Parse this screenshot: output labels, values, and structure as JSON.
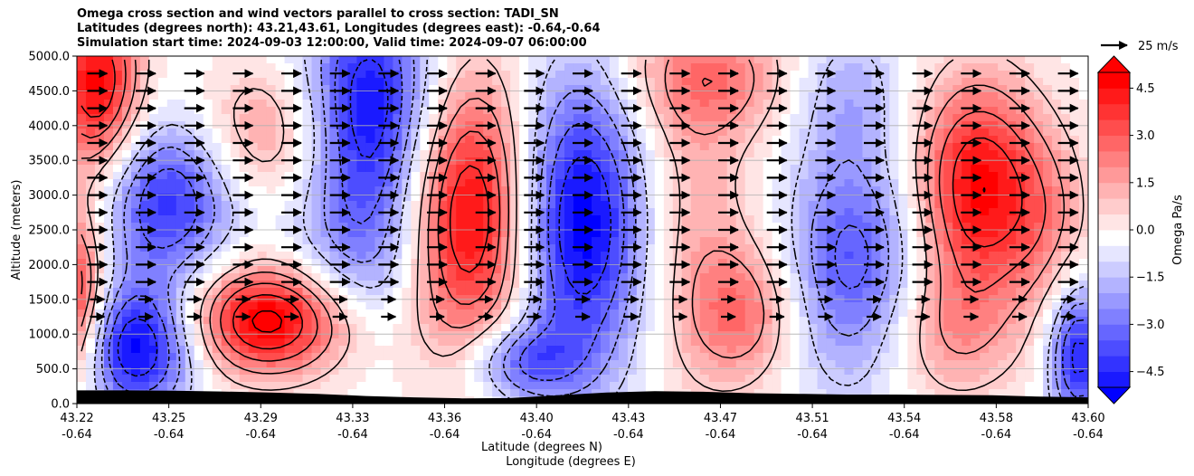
{
  "title_lines": [
    "Omega cross section and wind vectors parallel to cross section: TADI_SN",
    "Latitudes (degrees north): 43.21,43.61, Longitudes (degrees east): -0.64,-0.64",
    "Simulation start time: 2024-09-03 12:00:00, Valid time: 2024-09-07 06:00:00"
  ],
  "chart_data": {
    "type": "heatmap",
    "title": "Omega cross section and wind vectors parallel to cross section: TADI_SN",
    "ylabel": "Altitude (meters)",
    "xlabel_line1": "Latitude (degrees N)",
    "xlabel_line2": "Longitude (degrees E)",
    "ylim": [
      0,
      5000
    ],
    "y_ticks": [
      "0.0",
      "500.0",
      "1000.0",
      "1500.0",
      "2000.0",
      "2500.0",
      "3000.0",
      "3500.0",
      "4000.0",
      "4500.0",
      "5000.0"
    ],
    "y_tick_values": [
      0,
      500,
      1000,
      1500,
      2000,
      2500,
      3000,
      3500,
      4000,
      4500,
      5000
    ],
    "x_ticks_lat": [
      "43.22",
      "43.25",
      "43.29",
      "43.33",
      "43.36",
      "43.40",
      "43.43",
      "43.47",
      "43.51",
      "43.54",
      "43.58",
      "43.60"
    ],
    "x_ticks_lon": [
      "-0.64",
      "-0.64",
      "-0.64",
      "-0.64",
      "-0.64",
      "-0.64",
      "-0.64",
      "-0.64",
      "-0.64",
      "-0.64",
      "-0.64",
      "-0.64"
    ],
    "grid": "horizontal",
    "colorbar": {
      "label": "Omega Pa/s",
      "range": [
        -5,
        5
      ],
      "ticks": [
        "4.5",
        "3.0",
        "1.5",
        "0.0",
        "−1.5",
        "−3.0",
        "−4.5"
      ],
      "tick_values": [
        4.5,
        3.0,
        1.5,
        0.0,
        -1.5,
        -3.0,
        -4.5
      ],
      "colormap": "bwr",
      "extend": "both"
    },
    "vector_key": "25 m/s",
    "omega_field": {
      "comment_units": "x in fraction of section (0=43.22, 1=43.60), altitude in meters, omega in Pa/s",
      "cells": [
        {
          "x": 0.02,
          "alt": 4600,
          "omega": 5.0,
          "wx": 0.03,
          "walt": 900
        },
        {
          "x": 0.0,
          "alt": 1500,
          "omega": 4.2,
          "wx": 0.02,
          "walt": 900
        },
        {
          "x": 0.09,
          "alt": 2900,
          "omega": -4.0,
          "wx": 0.045,
          "walt": 800
        },
        {
          "x": 0.06,
          "alt": 800,
          "omega": -5.0,
          "wx": 0.04,
          "walt": 650
        },
        {
          "x": 0.19,
          "alt": 1200,
          "omega": 5.5,
          "wx": 0.055,
          "walt": 550
        },
        {
          "x": 0.19,
          "alt": 3900,
          "omega": 2.0,
          "wx": 0.05,
          "walt": 700
        },
        {
          "x": 0.29,
          "alt": 4200,
          "omega": -5.0,
          "wx": 0.045,
          "walt": 1300
        },
        {
          "x": 0.28,
          "alt": 2000,
          "omega": -1.5,
          "wx": 0.05,
          "walt": 800
        },
        {
          "x": 0.39,
          "alt": 2700,
          "omega": 5.5,
          "wx": 0.045,
          "walt": 1400
        },
        {
          "x": 0.5,
          "alt": 2600,
          "omega": -5.5,
          "wx": 0.05,
          "walt": 1500
        },
        {
          "x": 0.44,
          "alt": 600,
          "omega": -3.0,
          "wx": 0.04,
          "walt": 400
        },
        {
          "x": 0.6,
          "alt": 2800,
          "omega": 1.8,
          "wx": 0.05,
          "walt": 1800
        },
        {
          "x": 0.66,
          "alt": 1300,
          "omega": 2.5,
          "wx": 0.04,
          "walt": 700
        },
        {
          "x": 0.63,
          "alt": 4700,
          "omega": 2.2,
          "wx": 0.06,
          "walt": 600
        },
        {
          "x": 0.77,
          "alt": 2000,
          "omega": -3.5,
          "wx": 0.05,
          "walt": 1200
        },
        {
          "x": 0.76,
          "alt": 4500,
          "omega": -1.5,
          "wx": 0.04,
          "walt": 700
        },
        {
          "x": 0.89,
          "alt": 3100,
          "omega": 5.0,
          "wx": 0.045,
          "walt": 1100
        },
        {
          "x": 0.86,
          "alt": 1000,
          "omega": 2.0,
          "wx": 0.05,
          "walt": 700
        },
        {
          "x": 0.99,
          "alt": 700,
          "omega": -4.5,
          "wx": 0.02,
          "walt": 700
        },
        {
          "x": 0.96,
          "alt": 2600,
          "omega": 1.5,
          "wx": 0.03,
          "walt": 900
        }
      ]
    },
    "terrain_height_m": [
      190,
      190,
      185,
      175,
      160,
      140,
      110,
      90,
      75,
      80,
      120,
      160,
      180,
      170,
      150,
      140,
      130,
      130,
      125,
      120,
      100,
      90
    ]
  }
}
